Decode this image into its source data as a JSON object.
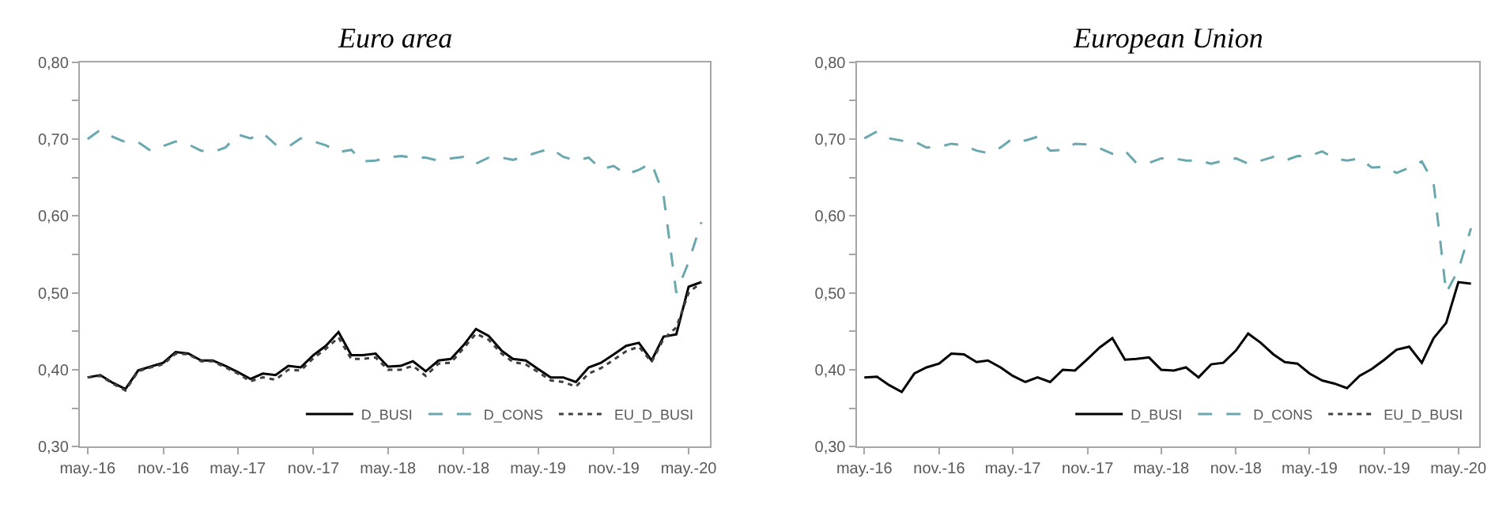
{
  "chart_data": [
    {
      "type": "line",
      "title": "Euro area",
      "x": [
        "2016-05",
        "2016-06",
        "2016-07",
        "2016-08",
        "2016-09",
        "2016-10",
        "2016-11",
        "2016-12",
        "2017-01",
        "2017-02",
        "2017-03",
        "2017-04",
        "2017-05",
        "2017-06",
        "2017-07",
        "2017-08",
        "2017-09",
        "2017-10",
        "2017-11",
        "2017-12",
        "2018-01",
        "2018-02",
        "2018-03",
        "2018-04",
        "2018-05",
        "2018-06",
        "2018-07",
        "2018-08",
        "2018-09",
        "2018-10",
        "2018-11",
        "2018-12",
        "2019-01",
        "2019-02",
        "2019-03",
        "2019-04",
        "2019-05",
        "2019-06",
        "2019-07",
        "2019-08",
        "2019-09",
        "2019-10",
        "2019-11",
        "2019-12",
        "2020-01",
        "2020-02",
        "2020-03",
        "2020-04",
        "2020-05",
        "2020-06"
      ],
      "xlim": [
        "2016-04-12",
        "2020-06-22"
      ],
      "xticks": [
        {
          "value": "2016-05",
          "label": "may.-16"
        },
        {
          "value": "2016-11",
          "label": "nov.-16"
        },
        {
          "value": "2017-05",
          "label": "may.-17"
        },
        {
          "value": "2017-11",
          "label": "nov.-17"
        },
        {
          "value": "2018-05",
          "label": "may.-18"
        },
        {
          "value": "2018-11",
          "label": "nov.-18"
        },
        {
          "value": "2019-05",
          "label": "may.-19"
        },
        {
          "value": "2019-11",
          "label": "nov.-19"
        },
        {
          "value": "2020-05",
          "label": "may.-20"
        }
      ],
      "ylim": [
        0.3,
        0.8
      ],
      "yticks": [
        {
          "value": 0.3,
          "label": "0,30"
        },
        {
          "value": 0.35,
          "label": null
        },
        {
          "value": 0.4,
          "label": "0,40"
        },
        {
          "value": 0.45,
          "label": null
        },
        {
          "value": 0.5,
          "label": "0,50"
        },
        {
          "value": 0.55,
          "label": null
        },
        {
          "value": 0.6,
          "label": "0,60"
        },
        {
          "value": 0.65,
          "label": null
        },
        {
          "value": 0.7,
          "label": "0,70"
        },
        {
          "value": 0.75,
          "label": null
        },
        {
          "value": 0.8,
          "label": "0,80"
        }
      ],
      "grid": false,
      "legend": "bottom right",
      "marker": "none",
      "series": [
        {
          "name": "D_BUSI",
          "color": "#000000",
          "line_style": "solid",
          "values": [
            0.39,
            0.393,
            0.383,
            0.375,
            0.399,
            0.404,
            0.409,
            0.423,
            0.421,
            0.412,
            0.412,
            0.405,
            0.397,
            0.388,
            0.395,
            0.393,
            0.405,
            0.403,
            0.419,
            0.431,
            0.449,
            0.419,
            0.419,
            0.421,
            0.404,
            0.405,
            0.411,
            0.398,
            0.412,
            0.414,
            0.432,
            0.453,
            0.444,
            0.425,
            0.414,
            0.412,
            0.401,
            0.39,
            0.39,
            0.384,
            0.403,
            0.409,
            0.42,
            0.431,
            0.435,
            0.412,
            0.443,
            0.446,
            0.508,
            0.514
          ]
        },
        {
          "name": "D_CONS",
          "color": "#6aa8b0",
          "line_style": "dashed",
          "values": [
            0.7,
            0.712,
            0.703,
            0.696,
            0.696,
            0.685,
            0.691,
            0.697,
            0.693,
            0.685,
            0.683,
            0.689,
            0.706,
            0.701,
            0.708,
            0.693,
            0.69,
            0.701,
            0.697,
            0.692,
            0.683,
            0.686,
            0.671,
            0.672,
            0.676,
            0.678,
            0.676,
            0.676,
            0.672,
            0.675,
            0.677,
            0.668,
            0.676,
            0.676,
            0.673,
            0.678,
            0.683,
            0.688,
            0.677,
            0.672,
            0.676,
            0.661,
            0.665,
            0.654,
            0.66,
            0.669,
            0.627,
            0.5,
            0.54,
            0.592
          ]
        },
        {
          "name": "EU_D_BUSI",
          "color": "#404040",
          "line_style": "dotted",
          "values": [
            0.39,
            0.392,
            0.382,
            0.373,
            0.398,
            0.403,
            0.407,
            0.421,
            0.42,
            0.411,
            0.411,
            0.403,
            0.395,
            0.385,
            0.39,
            0.387,
            0.4,
            0.399,
            0.415,
            0.427,
            0.442,
            0.414,
            0.414,
            0.416,
            0.4,
            0.4,
            0.405,
            0.392,
            0.408,
            0.409,
            0.428,
            0.447,
            0.439,
            0.421,
            0.41,
            0.407,
            0.397,
            0.386,
            0.384,
            0.378,
            0.395,
            0.402,
            0.413,
            0.424,
            0.43,
            0.41,
            0.44,
            0.455,
            0.5,
            0.514
          ]
        }
      ]
    },
    {
      "type": "line",
      "title": "European Union",
      "x": [
        "2016-05",
        "2016-06",
        "2016-07",
        "2016-08",
        "2016-09",
        "2016-10",
        "2016-11",
        "2016-12",
        "2017-01",
        "2017-02",
        "2017-03",
        "2017-04",
        "2017-05",
        "2017-06",
        "2017-07",
        "2017-08",
        "2017-09",
        "2017-10",
        "2017-11",
        "2017-12",
        "2018-01",
        "2018-02",
        "2018-03",
        "2018-04",
        "2018-05",
        "2018-06",
        "2018-07",
        "2018-08",
        "2018-09",
        "2018-10",
        "2018-11",
        "2018-12",
        "2019-01",
        "2019-02",
        "2019-03",
        "2019-04",
        "2019-05",
        "2019-06",
        "2019-07",
        "2019-08",
        "2019-09",
        "2019-10",
        "2019-11",
        "2019-12",
        "2020-01",
        "2020-02",
        "2020-03",
        "2020-04",
        "2020-05",
        "2020-06"
      ],
      "xlim": [
        "2016-04-12",
        "2020-06-22"
      ],
      "xticks": [
        {
          "value": "2016-05",
          "label": "may.-16"
        },
        {
          "value": "2016-11",
          "label": "nov.-16"
        },
        {
          "value": "2017-05",
          "label": "may.-17"
        },
        {
          "value": "2017-11",
          "label": "nov.-17"
        },
        {
          "value": "2018-05",
          "label": "may.-18"
        },
        {
          "value": "2018-11",
          "label": "nov.-18"
        },
        {
          "value": "2019-05",
          "label": "may.-19"
        },
        {
          "value": "2019-11",
          "label": "nov.-19"
        },
        {
          "value": "2020-05",
          "label": "may.-20"
        }
      ],
      "ylim": [
        0.3,
        0.8
      ],
      "yticks": [
        {
          "value": 0.3,
          "label": "0,30"
        },
        {
          "value": 0.35,
          "label": null
        },
        {
          "value": 0.4,
          "label": "0,40"
        },
        {
          "value": 0.45,
          "label": null
        },
        {
          "value": 0.5,
          "label": "0,50"
        },
        {
          "value": 0.55,
          "label": null
        },
        {
          "value": 0.6,
          "label": "0,60"
        },
        {
          "value": 0.65,
          "label": null
        },
        {
          "value": 0.7,
          "label": "0,70"
        },
        {
          "value": 0.75,
          "label": null
        },
        {
          "value": 0.8,
          "label": "0,80"
        }
      ],
      "grid": false,
      "legend": "bottom right",
      "marker": "none",
      "series": [
        {
          "name": "D_BUSI",
          "color": "#000000",
          "line_style": "solid",
          "values": [
            0.39,
            0.391,
            0.38,
            0.371,
            0.395,
            0.403,
            0.408,
            0.421,
            0.42,
            0.41,
            0.412,
            0.403,
            0.392,
            0.384,
            0.39,
            0.384,
            0.4,
            0.399,
            0.414,
            0.429,
            0.441,
            0.413,
            0.414,
            0.416,
            0.4,
            0.399,
            0.403,
            0.39,
            0.407,
            0.409,
            0.425,
            0.447,
            0.435,
            0.42,
            0.41,
            0.408,
            0.395,
            0.386,
            0.382,
            0.376,
            0.392,
            0.401,
            0.413,
            0.426,
            0.43,
            0.409,
            0.441,
            0.461,
            0.514,
            0.512
          ]
        },
        {
          "name": "D_CONS",
          "color": "#6aa8b0",
          "line_style": "dashed",
          "values": [
            0.701,
            0.71,
            0.701,
            0.698,
            0.697,
            0.689,
            0.69,
            0.694,
            0.692,
            0.685,
            0.682,
            0.689,
            0.701,
            0.698,
            0.703,
            0.685,
            0.686,
            0.694,
            0.693,
            0.688,
            0.681,
            0.685,
            0.669,
            0.669,
            0.675,
            0.675,
            0.672,
            0.672,
            0.668,
            0.672,
            0.675,
            0.668,
            0.672,
            0.677,
            0.672,
            0.678,
            0.678,
            0.684,
            0.675,
            0.672,
            0.675,
            0.663,
            0.664,
            0.656,
            0.663,
            0.671,
            0.643,
            0.5,
            0.53,
            0.584
          ]
        },
        {
          "name": "EU_D_BUSI",
          "color": "#404040",
          "line_style": "dotted",
          "values": [
            null,
            null,
            null,
            null,
            null,
            null,
            null,
            null,
            null,
            null,
            null,
            null,
            null,
            null,
            null,
            null,
            null,
            null,
            null,
            null,
            null,
            null,
            null,
            null,
            null,
            null,
            null,
            null,
            null,
            null,
            null,
            null,
            null,
            null,
            null,
            null,
            null,
            null,
            null,
            null,
            null,
            null,
            null,
            null,
            null,
            null,
            null,
            null,
            null,
            null
          ]
        }
      ]
    }
  ]
}
